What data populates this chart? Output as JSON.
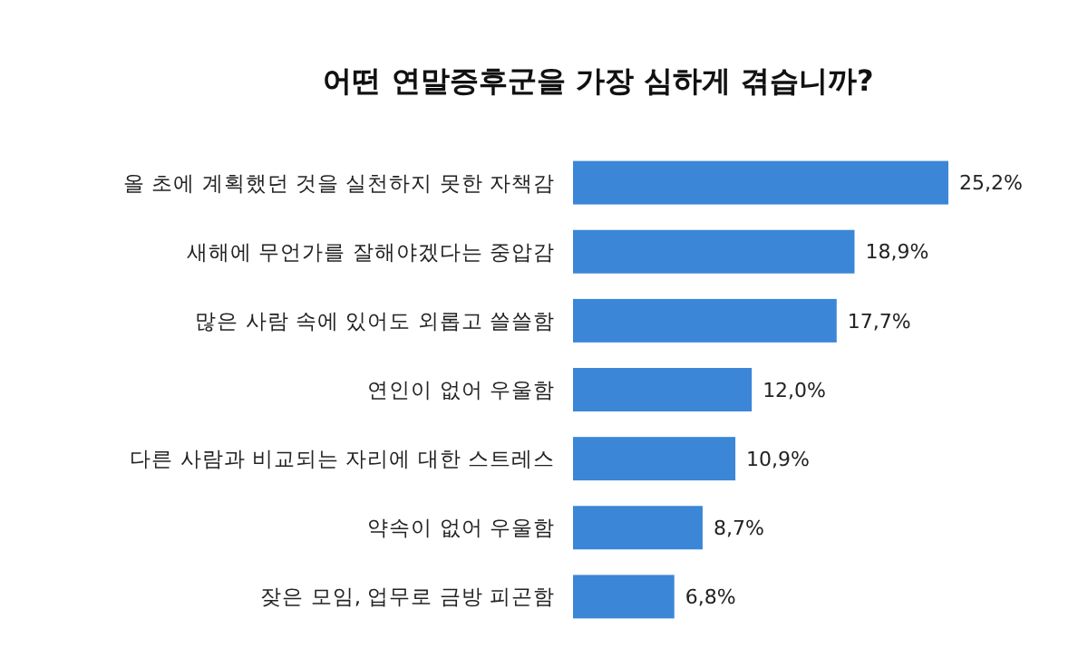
{
  "chart_data": {
    "type": "bar",
    "orientation": "horizontal",
    "title": "어떤 연말증후군을 가장 심하게 겪습니까?",
    "categories": [
      "올 초에 계획했던 것을 실천하지 못한 자책감",
      "새해에 무언가를 잘해야겠다는 중압감",
      "많은 사람 속에 있어도 외롭고 쓸쓸함",
      "연인이 없어 우울함",
      "다른 사람과 비교되는 자리에 대한 스트레스",
      "약속이 없어 우울함",
      "잦은 모임, 업무로 금방 피곤함"
    ],
    "values": [
      25.2,
      18.9,
      17.7,
      12.0,
      10.9,
      8.7,
      6.8
    ],
    "value_labels": [
      "25,2%",
      "18,9%",
      "17,7%",
      "12,0%",
      "10,9%",
      "8,7%",
      "6,8%"
    ],
    "color": "#3b86d6"
  }
}
